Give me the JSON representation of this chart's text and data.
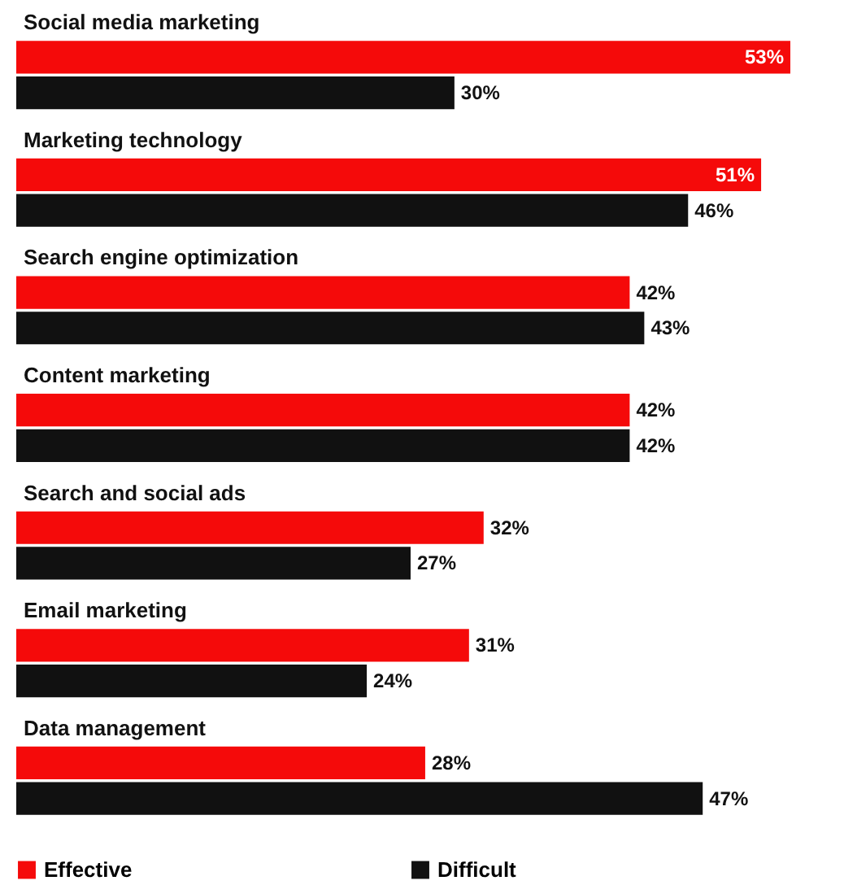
{
  "chart_data": {
    "type": "bar",
    "orientation": "horizontal",
    "categories": [
      "Social media marketing",
      "Marketing technology",
      "Search engine optimization",
      "Content marketing",
      "Search and social ads",
      "Email marketing",
      "Data management"
    ],
    "series": [
      {
        "name": "Effective",
        "color": "#f50a0a",
        "values": [
          53,
          51,
          42,
          42,
          32,
          31,
          28
        ],
        "value_labels": [
          "53%",
          "51%",
          "42%",
          "42%",
          "32%",
          "31%",
          "28%"
        ]
      },
      {
        "name": "Difficult",
        "color": "#111111",
        "values": [
          30,
          46,
          43,
          42,
          27,
          24,
          47
        ],
        "value_labels": [
          "30%",
          "46%",
          "43%",
          "42%",
          "27%",
          "24%",
          "47%"
        ]
      }
    ],
    "legend": "bottom"
  }
}
